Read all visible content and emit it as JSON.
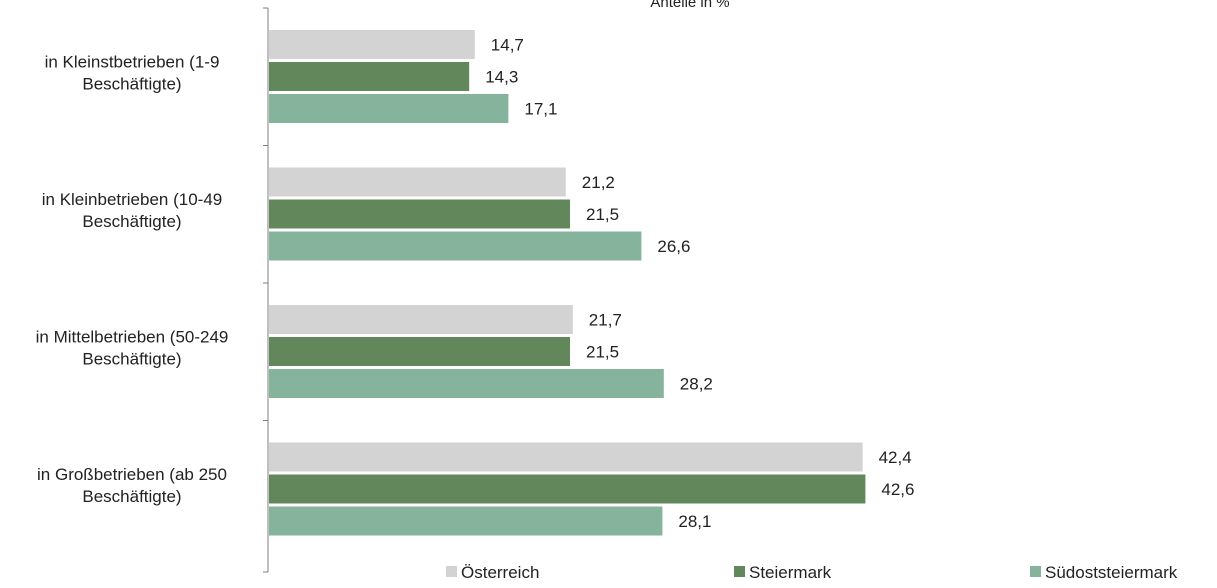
{
  "chart_data": {
    "type": "bar",
    "orientation": "horizontal",
    "subtitle": "Anteile in %",
    "categories": [
      [
        "in Kleinstbetrieben (1-9",
        "Beschäftigte)"
      ],
      [
        "in Kleinbetrieben (10-49",
        "Beschäftigte)"
      ],
      [
        "in Mittelbetrieben (50-249",
        "Beschäftigte)"
      ],
      [
        "in Großbetrieben (ab 250",
        "Beschäftigte)"
      ]
    ],
    "series": [
      {
        "name": "Österreich",
        "color": "#d3d3d3",
        "values": [
          14.7,
          21.2,
          21.7,
          42.4
        ],
        "labels": [
          "14,7",
          "21,2",
          "21,7",
          "42,4"
        ]
      },
      {
        "name": "Steiermark",
        "color": "#62875a",
        "values": [
          14.3,
          21.5,
          21.5,
          42.6
        ],
        "labels": [
          "14,3",
          "21,5",
          "21,5",
          "42,6"
        ]
      },
      {
        "name": "Südoststeiermark",
        "color": "#86b39b",
        "values": [
          17.1,
          26.6,
          28.2,
          28.1
        ],
        "labels": [
          "17,1",
          "26,6",
          "28,2",
          "28,1"
        ]
      }
    ],
    "xlim": [
      0,
      45
    ],
    "grid": false,
    "legend_position": "bottom"
  }
}
